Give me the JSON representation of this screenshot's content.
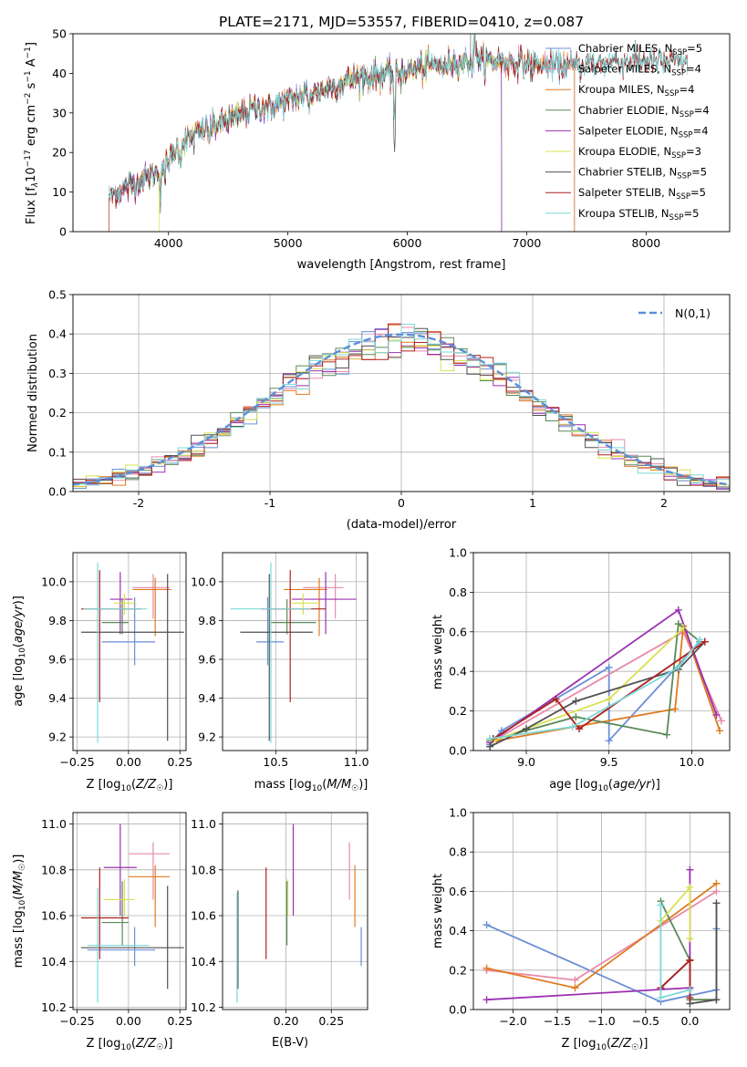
{
  "chart_data": [
    {
      "type": "line",
      "title": "PLATE=2171, MJD=53557, FIBERID=0410, z=0.087",
      "xlabel": "wavelength [Angstrom, rest frame]",
      "ylabel": "Flux [f_λ 10^-17 erg cm^-2 s^-1 A^-1]",
      "ylabel_parts": [
        "Flux [f",
        "λ",
        "10",
        "−17",
        " erg cm",
        "−2",
        " s",
        "−1",
        " A",
        "−1",
        "]"
      ],
      "xlim": [
        3200,
        8700
      ],
      "ylim": [
        0,
        50
      ],
      "xticks": [
        4000,
        5000,
        6000,
        7000,
        8000
      ],
      "yticks": [
        0,
        10,
        20,
        30,
        40,
        50
      ],
      "legend": "top-right",
      "series": [
        {
          "name": "Chabrier MILES",
          "nssp": "5",
          "color": "#6a8fd8",
          "xmin": 3550,
          "xmax": 8350,
          "edge": 7400
        },
        {
          "name": "Salpeter MILES",
          "nssp": "4",
          "color": "#e88aa8",
          "xmin": 3550,
          "xmax": 8350,
          "edge": 7400
        },
        {
          "name": "Kroupa MILES",
          "nssp": "4",
          "color": "#e07a20",
          "xmin": 3550,
          "xmax": 8350,
          "edge": 7400
        },
        {
          "name": "Chabrier ELODIE",
          "nssp": "4",
          "color": "#5a8a5a",
          "xmin": 3550,
          "xmax": 6800,
          "edge": 6790
        },
        {
          "name": "Salpeter ELODIE",
          "nssp": "4",
          "color": "#9b30b0",
          "xmin": 3550,
          "xmax": 6800,
          "edge": 6790
        },
        {
          "name": "Kroupa ELODIE",
          "nssp": "3",
          "color": "#d8e050",
          "xmin": 3920,
          "xmax": 6800,
          "edge": 3920
        },
        {
          "name": "Chabrier STELIB",
          "nssp": "5",
          "color": "#505050",
          "xmin": 3500,
          "xmax": 8350,
          "edge": null
        },
        {
          "name": "Salpeter STELIB",
          "nssp": "5",
          "color": "#b02020",
          "xmin": 3500,
          "xmax": 8350,
          "edge": 3500
        },
        {
          "name": "Kroupa STELIB",
          "nssp": "5",
          "color": "#7ed8d8",
          "xmin": 3500,
          "xmax": 8350,
          "edge": null
        }
      ],
      "continuum": [
        [
          3500,
          9
        ],
        [
          3700,
          12
        ],
        [
          3900,
          15
        ],
        [
          4000,
          18
        ],
        [
          4100,
          22
        ],
        [
          4300,
          26
        ],
        [
          4500,
          28
        ],
        [
          4700,
          31
        ],
        [
          5000,
          33
        ],
        [
          5300,
          36
        ],
        [
          5600,
          39
        ],
        [
          5900,
          40
        ],
        [
          6200,
          42
        ],
        [
          6500,
          43
        ],
        [
          6800,
          43
        ],
        [
          7100,
          42
        ],
        [
          7400,
          42
        ],
        [
          7700,
          43
        ],
        [
          8000,
          43
        ],
        [
          8350,
          43
        ]
      ]
    },
    {
      "type": "histogram",
      "xlabel": "(data-model)/error",
      "ylabel": "Normed distribution",
      "xlim": [
        -2.5,
        2.5
      ],
      "ylim": [
        0,
        0.5
      ],
      "xticks": [
        -2,
        -1,
        0,
        1,
        2
      ],
      "yticks": [
        0.0,
        0.1,
        0.2,
        0.3,
        0.4,
        0.5
      ],
      "bin_width": 0.1,
      "bin_start": -2.5,
      "legend": "top-right",
      "reference": {
        "name": "N(0,1)",
        "color": "#5b8fd8"
      }
    },
    {
      "type": "scatter",
      "xlabel": "Z [log10(Z/Z☉)]",
      "ylabel": "age [log10(age/yr)]",
      "xlim": [
        -0.27,
        0.28
      ],
      "ylim": [
        9.13,
        10.15
      ],
      "xticks": [
        -0.25,
        0.0,
        0.25
      ],
      "xtick_labels": [
        "−0.25",
        "0.00",
        "0.25"
      ],
      "yticks": [
        9.2,
        9.4,
        9.6,
        9.8,
        10.0
      ],
      "points": [
        {
          "color": "#6a8fd8",
          "x": 0.03,
          "xlo": -0.13,
          "xhi": 0.13,
          "y": 9.69,
          "ylo": 9.57,
          "yhi": 9.92
        },
        {
          "color": "#e88aa8",
          "x": 0.12,
          "xlo": 0.02,
          "xhi": 0.2,
          "y": 9.97,
          "ylo": 9.81,
          "yhi": 10.04
        },
        {
          "color": "#e07a20",
          "x": 0.13,
          "xlo": 0.02,
          "xhi": 0.21,
          "y": 9.96,
          "ylo": 9.72,
          "yhi": 10.02
        },
        {
          "color": "#5a8a5a",
          "x": -0.03,
          "xlo": -0.13,
          "xhi": 0.0,
          "y": 9.79,
          "ylo": 9.73,
          "yhi": 9.91
        },
        {
          "color": "#9b30b0",
          "x": -0.04,
          "xlo": -0.09,
          "xhi": 0.02,
          "y": 9.91,
          "ylo": 9.73,
          "yhi": 10.05
        },
        {
          "color": "#d8e050",
          "x": -0.02,
          "xlo": -0.07,
          "xhi": 0.04,
          "y": 9.89,
          "ylo": 9.83,
          "yhi": 9.94
        },
        {
          "color": "#505050",
          "x": 0.19,
          "xlo": -0.23,
          "xhi": 0.27,
          "y": 9.74,
          "ylo": 9.18,
          "yhi": 10.04
        },
        {
          "color": "#b02020",
          "x": -0.14,
          "xlo": -0.23,
          "xhi": 0.06,
          "y": 9.86,
          "ylo": 9.38,
          "yhi": 10.06
        },
        {
          "color": "#7ed8d8",
          "x": -0.15,
          "xlo": -0.22,
          "xhi": 0.09,
          "y": 9.86,
          "ylo": 9.17,
          "yhi": 10.1
        }
      ]
    },
    {
      "type": "scatter",
      "xlabel": "mass [log10(M/M☉)]",
      "ylabel": "",
      "xlim": [
        10.17,
        11.07
      ],
      "ylim": [
        9.13,
        10.15
      ],
      "xticks": [
        10.5,
        11.0
      ],
      "xtick_labels": [
        "10.5",
        "11.0"
      ],
      "yticks": [
        9.2,
        9.4,
        9.6,
        9.8,
        10.0
      ],
      "points": [
        {
          "color": "#6a8fd8",
          "x": 10.45,
          "xlo": 10.38,
          "xhi": 10.55,
          "y": 9.69,
          "ylo": 9.57,
          "yhi": 9.92
        },
        {
          "color": "#e88aa8",
          "x": 10.87,
          "xlo": 10.67,
          "xhi": 10.92,
          "y": 9.97,
          "ylo": 9.81,
          "yhi": 10.04
        },
        {
          "color": "#e07a20",
          "x": 10.77,
          "xlo": 10.55,
          "xhi": 10.82,
          "y": 9.96,
          "ylo": 9.72,
          "yhi": 10.02
        },
        {
          "color": "#5a8a5a",
          "x": 10.57,
          "xlo": 10.47,
          "xhi": 10.75,
          "y": 9.79,
          "ylo": 9.73,
          "yhi": 9.91
        },
        {
          "color": "#9b30b0",
          "x": 10.81,
          "xlo": 10.6,
          "xhi": 11.0,
          "y": 9.91,
          "ylo": 9.73,
          "yhi": 10.05
        },
        {
          "color": "#d8e050",
          "x": 10.67,
          "xlo": 10.6,
          "xhi": 10.76,
          "y": 9.89,
          "ylo": 9.83,
          "yhi": 9.94
        },
        {
          "color": "#505050",
          "x": 10.46,
          "xlo": 10.28,
          "xhi": 10.73,
          "y": 9.74,
          "ylo": 9.18,
          "yhi": 10.04
        },
        {
          "color": "#b02020",
          "x": 10.59,
          "xlo": 10.41,
          "xhi": 10.81,
          "y": 9.86,
          "ylo": 9.38,
          "yhi": 10.06
        },
        {
          "color": "#7ed8d8",
          "x": 10.47,
          "xlo": 10.22,
          "xhi": 10.72,
          "y": 9.86,
          "ylo": 9.17,
          "yhi": 10.1
        }
      ]
    },
    {
      "type": "line",
      "xlabel": "age [log10(age/yr)]",
      "ylabel": "mass weight",
      "xlim": [
        8.68,
        10.23
      ],
      "ylim": [
        0,
        1.0
      ],
      "xticks": [
        9.0,
        9.5,
        10.0
      ],
      "xtick_labels": [
        "9.0",
        "9.5",
        "10.0"
      ],
      "yticks": [
        0.0,
        0.2,
        0.4,
        0.6,
        0.8,
        1.0
      ],
      "series": [
        {
          "color": "#6a8fd8",
          "x": [
            8.78,
            8.85,
            9.5,
            9.5,
            10.05
          ],
          "y": [
            0.03,
            0.1,
            0.42,
            0.05,
            0.55
          ]
        },
        {
          "color": "#e88aa8",
          "x": [
            8.78,
            9.95,
            10.18
          ],
          "y": [
            0.04,
            0.6,
            0.15
          ]
        },
        {
          "color": "#e07a20",
          "x": [
            8.82,
            9.9,
            9.95,
            10.17
          ],
          "y": [
            0.05,
            0.21,
            0.63,
            0.1
          ]
        },
        {
          "color": "#5a8a5a",
          "x": [
            8.78,
            9.3,
            9.85,
            9.92,
            10.05
          ],
          "y": [
            0.05,
            0.17,
            0.08,
            0.64,
            0.55
          ]
        },
        {
          "color": "#9b30b0",
          "x": [
            8.78,
            9.92,
            10.15
          ],
          "y": [
            0.04,
            0.71,
            0.18
          ]
        },
        {
          "color": "#d8e050",
          "x": [
            8.8,
            9.5,
            9.95
          ],
          "y": [
            0.05,
            0.26,
            0.62
          ]
        },
        {
          "color": "#505050",
          "x": [
            8.78,
            9.0,
            9.3,
            9.92,
            10.08
          ],
          "y": [
            0.02,
            0.11,
            0.25,
            0.41,
            0.55
          ]
        },
        {
          "color": "#b02020",
          "x": [
            8.8,
            9.18,
            9.32,
            10.08
          ],
          "y": [
            0.06,
            0.26,
            0.11,
            0.55
          ]
        },
        {
          "color": "#7ed8d8",
          "x": [
            8.78,
            9.28,
            9.92,
            10.05
          ],
          "y": [
            0.06,
            0.12,
            0.42,
            0.56
          ]
        }
      ]
    },
    {
      "type": "scatter",
      "xlabel": "Z [log10(Z/Z☉)]",
      "ylabel": "mass [log10(M/M☉)]",
      "xlim": [
        -0.27,
        0.28
      ],
      "ylim": [
        10.19,
        11.05
      ],
      "xticks": [
        -0.25,
        0.0,
        0.25
      ],
      "xtick_labels": [
        "−0.25",
        "0.00",
        "0.25"
      ],
      "yticks": [
        10.2,
        10.4,
        10.6,
        10.8,
        11.0
      ],
      "points": [
        {
          "color": "#6a8fd8",
          "x": 0.03,
          "xlo": -0.2,
          "xhi": 0.13,
          "y": 10.45,
          "ylo": 10.38,
          "yhi": 10.55
        },
        {
          "color": "#e88aa8",
          "x": 0.12,
          "xlo": 0.0,
          "xhi": 0.2,
          "y": 10.87,
          "ylo": 10.67,
          "yhi": 10.92
        },
        {
          "color": "#e07a20",
          "x": 0.13,
          "xlo": 0.0,
          "xhi": 0.2,
          "y": 10.77,
          "ylo": 10.55,
          "yhi": 10.82
        },
        {
          "color": "#5a8a5a",
          "x": -0.03,
          "xlo": -0.13,
          "xhi": 0.0,
          "y": 10.57,
          "ylo": 10.47,
          "yhi": 10.75
        },
        {
          "color": "#9b30b0",
          "x": -0.04,
          "xlo": -0.12,
          "xhi": 0.04,
          "y": 10.81,
          "ylo": 10.6,
          "yhi": 11.0
        },
        {
          "color": "#d8e050",
          "x": -0.02,
          "xlo": -0.12,
          "xhi": 0.03,
          "y": 10.67,
          "ylo": 10.6,
          "yhi": 10.76
        },
        {
          "color": "#505050",
          "x": 0.19,
          "xlo": -0.23,
          "xhi": 0.27,
          "y": 10.46,
          "ylo": 10.28,
          "yhi": 10.73
        },
        {
          "color": "#b02020",
          "x": -0.14,
          "xlo": -0.23,
          "xhi": 0.0,
          "y": 10.59,
          "ylo": 10.41,
          "yhi": 10.81
        },
        {
          "color": "#7ed8d8",
          "x": -0.15,
          "xlo": -0.2,
          "xhi": 0.1,
          "y": 10.47,
          "ylo": 10.22,
          "yhi": 10.72
        }
      ]
    },
    {
      "type": "scatter",
      "xlabel": "E(B-V)",
      "ylabel": "",
      "xlim": [
        0.13,
        0.29
      ],
      "ylim": [
        10.19,
        11.05
      ],
      "xticks": [
        0.2,
        0.25
      ],
      "xtick_labels": [
        "0.20",
        "0.25"
      ],
      "yticks": [
        10.2,
        10.4,
        10.6,
        10.8,
        11.0
      ],
      "points": [
        {
          "color": "#6a8fd8",
          "x": 0.283,
          "y": 10.45,
          "ylo": 10.38,
          "yhi": 10.55
        },
        {
          "color": "#e88aa8",
          "x": 0.27,
          "y": 10.87,
          "ylo": 10.67,
          "yhi": 10.92
        },
        {
          "color": "#e07a20",
          "x": 0.276,
          "y": 10.77,
          "ylo": 10.55,
          "yhi": 10.82
        },
        {
          "color": "#5a8a5a",
          "x": 0.201,
          "y": 10.57,
          "ylo": 10.47,
          "yhi": 10.75
        },
        {
          "color": "#9b30b0",
          "x": 0.208,
          "y": 10.81,
          "ylo": 10.6,
          "yhi": 11.0
        },
        {
          "color": "#d8e050",
          "x": 0.202,
          "y": 10.67,
          "ylo": 10.6,
          "yhi": 10.76
        },
        {
          "color": "#505050",
          "x": 0.147,
          "y": 10.46,
          "ylo": 10.28,
          "yhi": 10.71
        },
        {
          "color": "#b02020",
          "x": 0.178,
          "y": 10.59,
          "ylo": 10.41,
          "yhi": 10.81
        },
        {
          "color": "#7ed8d8",
          "x": 0.146,
          "y": 10.47,
          "ylo": 10.22,
          "yhi": 10.7
        }
      ]
    },
    {
      "type": "line",
      "xlabel": "Z [log10(Z/Z☉)]",
      "ylabel": "mass weight",
      "xlim": [
        -2.45,
        0.45
      ],
      "ylim": [
        0,
        1.0
      ],
      "xticks": [
        -2.0,
        -1.5,
        -1.0,
        -0.5,
        0.0
      ],
      "xtick_labels": [
        "−2.0",
        "−1.5",
        "−1.0",
        "−0.5",
        "0.0"
      ],
      "yticks": [
        0.0,
        0.2,
        0.4,
        0.6,
        0.8,
        1.0
      ],
      "series": [
        {
          "color": "#6a8fd8",
          "x": [
            -2.3,
            -0.33,
            0.3,
            0.3
          ],
          "y": [
            0.43,
            0.04,
            0.1,
            0.41
          ]
        },
        {
          "color": "#e88aa8",
          "x": [
            -2.3,
            -1.3,
            0.3
          ],
          "y": [
            0.2,
            0.15,
            0.6
          ]
        },
        {
          "color": "#e07a20",
          "x": [
            -2.3,
            -1.3,
            0.3
          ],
          "y": [
            0.21,
            0.11,
            0.64
          ]
        },
        {
          "color": "#5a8a5a",
          "x": [
            -0.33,
            0.0,
            0.0,
            0.3
          ],
          "y": [
            0.55,
            0.25,
            0.05,
            0.05
          ]
        },
        {
          "color": "#9b30b0",
          "x": [
            -2.3,
            0.0,
            0.0
          ],
          "y": [
            0.05,
            0.11,
            0.71
          ]
        },
        {
          "color": "#d8e050",
          "x": [
            -0.33,
            0.0,
            0.0
          ],
          "y": [
            0.45,
            0.62,
            0.36
          ]
        },
        {
          "color": "#505050",
          "x": [
            -0.33,
            0.0,
            0.0,
            0.3,
            0.3
          ],
          "y": [
            0.11,
            0.25,
            0.03,
            0.05,
            0.54
          ]
        },
        {
          "color": "#b02020",
          "x": [
            -0.33,
            0.0,
            0.0
          ],
          "y": [
            0.11,
            0.25,
            0.06
          ]
        },
        {
          "color": "#7ed8d8",
          "x": [
            -0.33,
            -0.33,
            0.0
          ],
          "y": [
            0.53,
            0.06,
            0.1
          ]
        }
      ]
    }
  ]
}
